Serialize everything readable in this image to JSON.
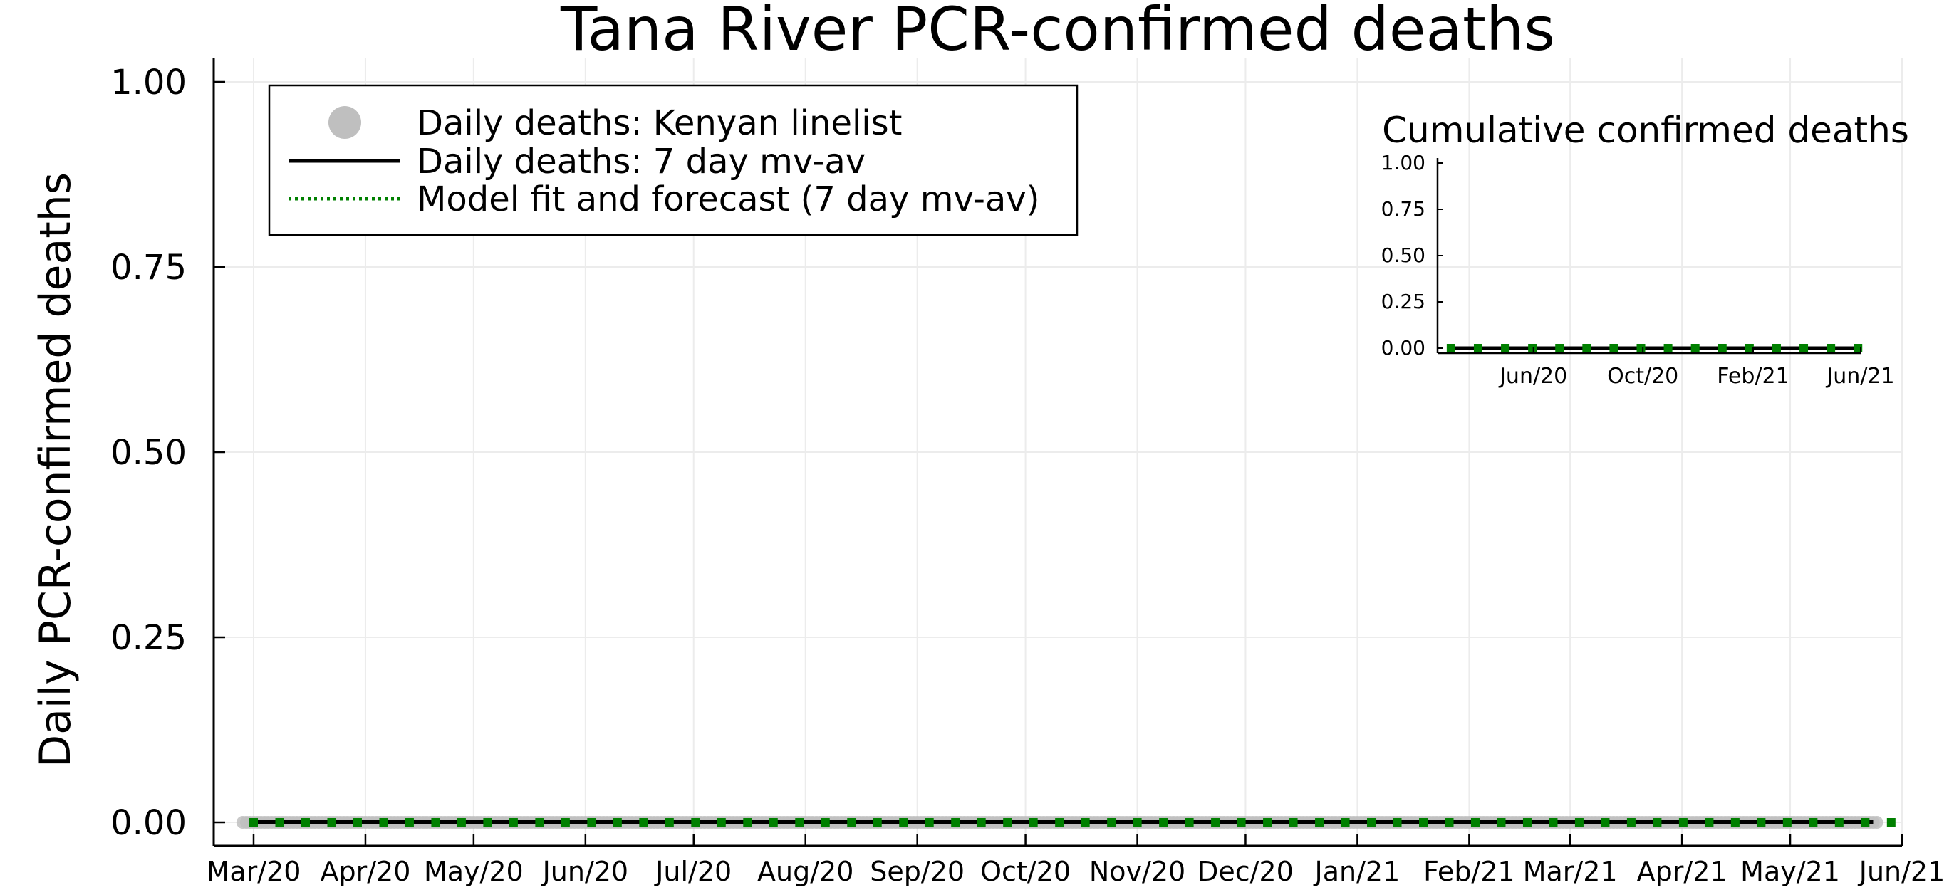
{
  "chart_data": [
    {
      "type": "line",
      "title": "Tana River PCR-confirmed deaths",
      "ylabel": "Daily PCR-confirmed deaths",
      "xlabel": "",
      "ylim": [
        0,
        1
      ],
      "yticks": [
        "0.00",
        "0.25",
        "0.50",
        "0.75",
        "1.00"
      ],
      "x_range": [
        "2020-03-01",
        "2021-06-01"
      ],
      "xticks": [
        "Mar/20",
        "Apr/20",
        "May/20",
        "Jun/20",
        "Jul/20",
        "Aug/20",
        "Sep/20",
        "Oct/20",
        "Nov/20",
        "Dec/20",
        "Jan/21",
        "Feb/21",
        "Mar/21",
        "Apr/21",
        "May/21",
        "Jun/21"
      ],
      "grid": true,
      "legend_position": "top-left",
      "series": [
        {
          "name": "Daily deaths: Kenyan linelist",
          "style": "scatter",
          "color": "#bfbfbf",
          "x_start": "2020-02-27",
          "x_end": "2021-05-25",
          "value": 0
        },
        {
          "name": "Daily deaths: 7 day mv-av",
          "style": "solid line",
          "color": "#000000",
          "x_start": "2020-03-01",
          "x_end": "2021-05-24",
          "value": 0
        },
        {
          "name": "Model fit and forecast (7 day mv-av)",
          "style": "dotted line",
          "color": "#008000",
          "x_start": "2020-03-01",
          "x_end": "2021-05-29",
          "value": 0
        }
      ]
    },
    {
      "type": "line",
      "title": "Cumulative confirmed deaths",
      "ylim": [
        0,
        1
      ],
      "yticks": [
        "0.00",
        "0.25",
        "0.50",
        "0.75",
        "1.00"
      ],
      "xticks": [
        "Jun/20",
        "Oct/20",
        "Feb/21",
        "Jun/21"
      ],
      "x_range": [
        "2020-02-15",
        "2021-06-01"
      ],
      "series": [
        {
          "style": "solid line",
          "color": "#000000",
          "x_start": "2020-03-01",
          "x_end": "2021-05-29",
          "value": 0
        },
        {
          "style": "dotted line",
          "color": "#008000",
          "x_start": "2020-03-01",
          "x_end": "2021-05-29",
          "value": 0
        }
      ]
    }
  ]
}
